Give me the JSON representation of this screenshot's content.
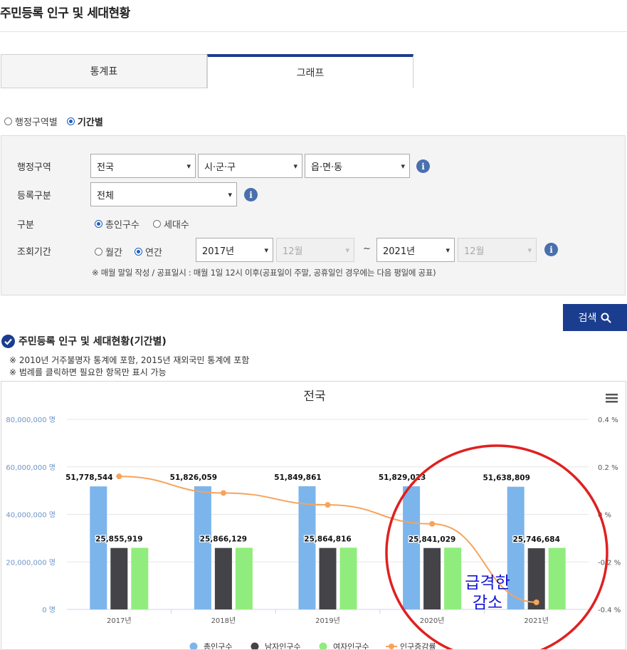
{
  "page": {
    "title": "주민등록 인구 및 세대현황"
  },
  "tabs": [
    {
      "label": "통계표",
      "active": false
    },
    {
      "label": "그래프",
      "active": true
    }
  ],
  "view_mode": {
    "options": [
      "행정구역별",
      "기간별"
    ],
    "selected": "기간별"
  },
  "filters": {
    "region_label": "행정구역",
    "region_values": [
      "전국",
      "시·군·구",
      "읍·면·동"
    ],
    "reg_type_label": "등록구분",
    "reg_type_value": "전체",
    "category_label": "구분",
    "category_options": [
      "총인구수",
      "세대수"
    ],
    "category_selected": "총인구수",
    "period_label": "조회기간",
    "period_options": [
      "월간",
      "연간"
    ],
    "period_selected": "연간",
    "start_year": "2017년",
    "start_month": "12월",
    "tilde": "~",
    "end_year": "2021년",
    "end_month": "12월",
    "notice": "※ 매월 말일 작성 / 공표일시 : 매월 1일 12시 이후(공표일이 주말, 공휴일인 경우에는 다음 평일에 공표)",
    "info_glyph": "i"
  },
  "search_button": {
    "label": "검색"
  },
  "section": {
    "title": "주민등록 인구 및 세대현황(기간별)",
    "notes": [
      "※ 2010년 거주불명자 통계에 포함, 2015년 재외국민 통계에 포함",
      "※ 범례를 클릭하면 필요한 항목만 표시 가능"
    ]
  },
  "colors": {
    "navy": "#1a3d8f",
    "total": "#7cb5ec",
    "male": "#434348",
    "female": "#90ed7d",
    "change": "#f7a35c",
    "annotation": "#e02020",
    "annotation_text": "#1414d4"
  },
  "chart_data": {
    "type": "bar",
    "title": "전국",
    "categories": [
      "2017년",
      "2018년",
      "2019년",
      "2020년",
      "2021년"
    ],
    "series": [
      {
        "name": "총인구수",
        "type": "bar",
        "values": [
          51778544,
          51826059,
          51849861,
          51829023,
          51638809
        ],
        "labels": [
          "51,778,544",
          "51,826,059",
          "51,849,861",
          "51,829,023",
          "51,638,809"
        ]
      },
      {
        "name": "남자인구수",
        "type": "bar",
        "values": [
          25855919,
          25866129,
          25864816,
          25841029,
          25746684
        ],
        "labels": [
          "25,855,919",
          "25,866,129",
          "25,864,816",
          "25,841,029",
          "25,746,684"
        ]
      },
      {
        "name": "여자인구수",
        "type": "bar",
        "values": [
          25922625,
          25959930,
          25985045,
          25987994,
          25892125
        ]
      },
      {
        "name": "인구증감률",
        "type": "line",
        "axis": "right",
        "values": [
          0.16,
          0.09,
          0.04,
          -0.04,
          -0.37
        ]
      }
    ],
    "y_left": {
      "ticks": [
        "0 명",
        "20,000,000 명",
        "40,000,000 명",
        "60,000,000 명",
        "80,000,000 명"
      ],
      "range": [
        0,
        80000000
      ]
    },
    "y_right": {
      "ticks": [
        "-0.4 %",
        "-0.2 %",
        "0 %",
        "0.2 %",
        "0.4 %"
      ],
      "range": [
        -0.4,
        0.4
      ]
    },
    "legend_position": "bottom",
    "grid": true,
    "menu_icon": "hamburger-icon",
    "annotation": "급격한 감소"
  }
}
